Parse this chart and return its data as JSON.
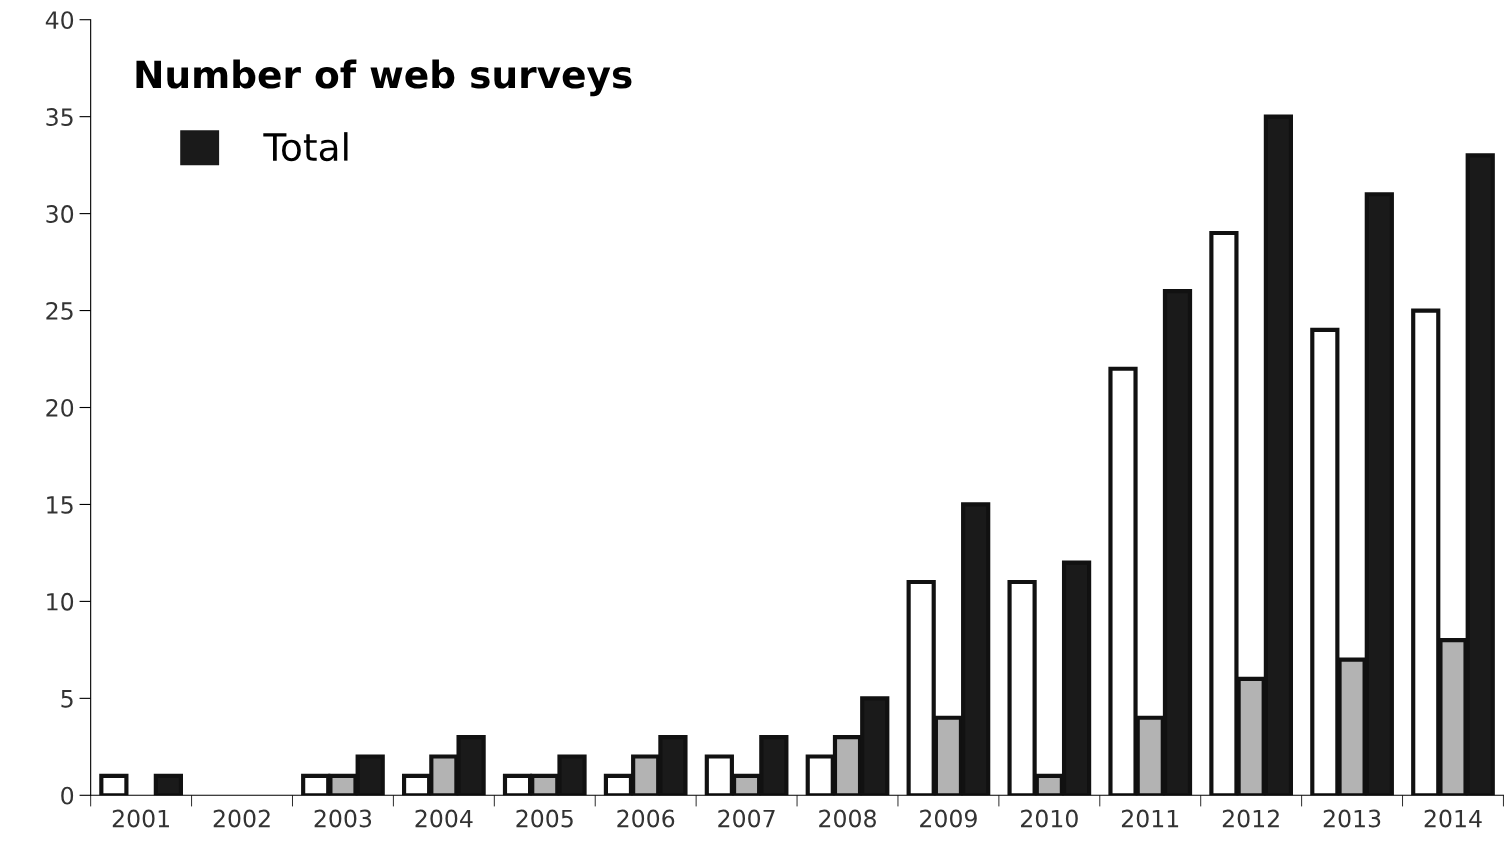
{
  "chart_data": {
    "type": "bar",
    "title": "Number of web surveys",
    "categories": [
      "2001",
      "2002",
      "2003",
      "2004",
      "2005",
      "2006",
      "2007",
      "2008",
      "2009",
      "2010",
      "2011",
      "2012",
      "2013",
      "2014"
    ],
    "series": [
      {
        "color": "#ffffff",
        "values": [
          1,
          0,
          1,
          1,
          1,
          1,
          2,
          2,
          11,
          11,
          22,
          29,
          24,
          25
        ]
      },
      {
        "color": "#b3b3b3",
        "values": [
          0,
          0,
          1,
          2,
          1,
          2,
          1,
          3,
          4,
          1,
          4,
          6,
          7,
          8
        ]
      },
      {
        "name": "Total",
        "color": "#1a1a1a",
        "values": [
          1,
          0,
          2,
          3,
          2,
          3,
          3,
          5,
          15,
          12,
          26,
          35,
          31,
          33
        ]
      }
    ],
    "ylim": [
      0,
      40
    ],
    "yticks": [
      0,
      5,
      10,
      15,
      20,
      25,
      30,
      35,
      40
    ],
    "grid": false,
    "legend": "top left"
  }
}
